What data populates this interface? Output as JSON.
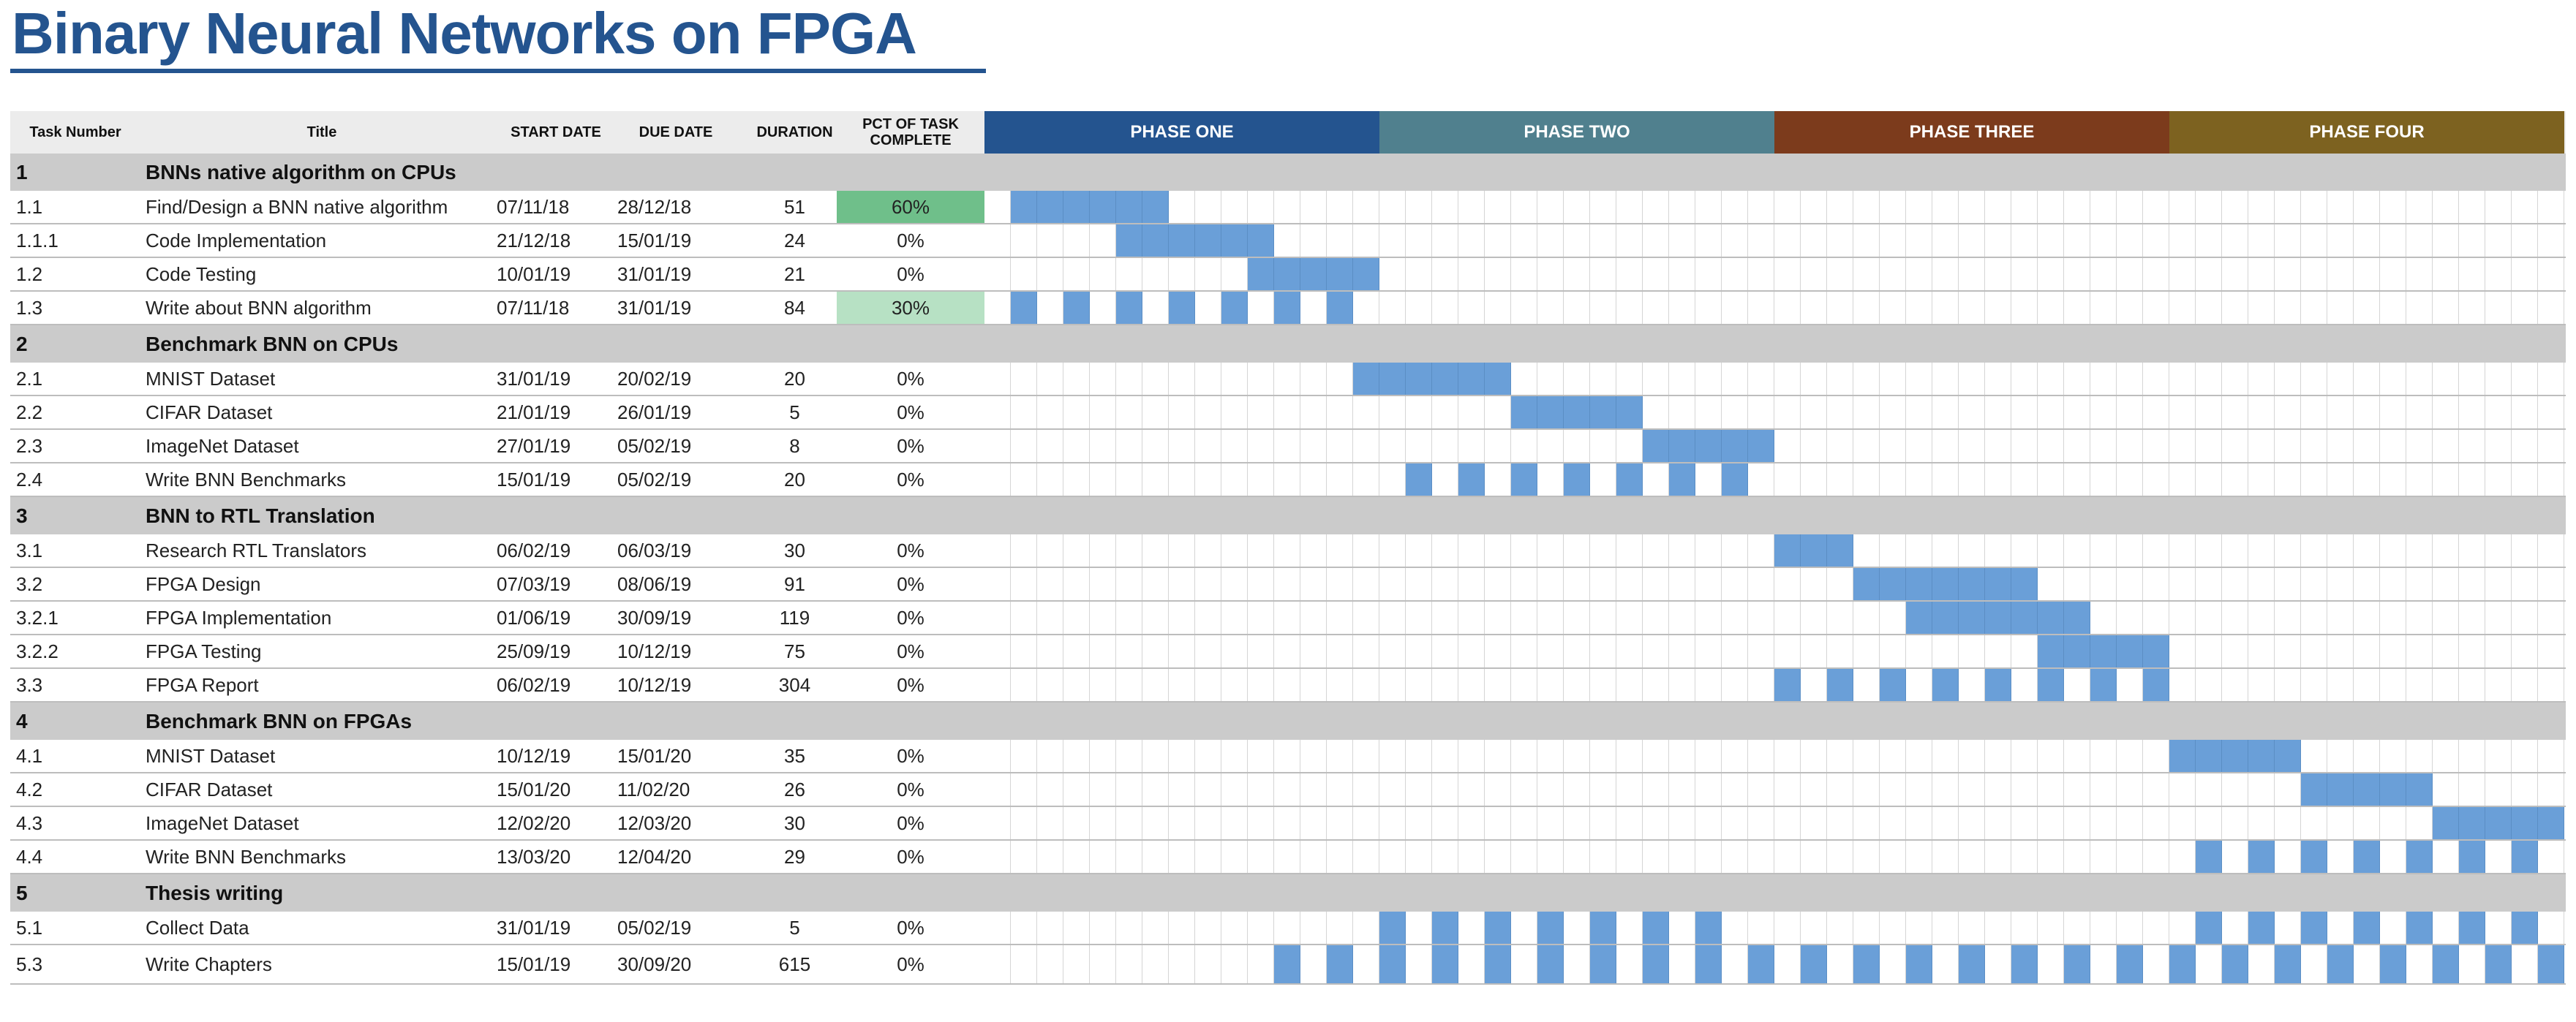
{
  "title": "Binary Neural Networks on FPGA",
  "colors": {
    "title": "#24548f",
    "header_bg": "#ececec",
    "section_bg": "#cbcbcb",
    "bar": "#6a9fd8",
    "pct_high": "#6fbf8a",
    "pct_mid": "#b7e1c4"
  },
  "headers": {
    "task_number": "Task Number",
    "title": "Title",
    "start": "START DATE",
    "due": "DUE DATE",
    "duration": "DURATION",
    "pct": "PCT OF TASK COMPLETE"
  },
  "phases": [
    {
      "label": "PHASE ONE",
      "color": "#24548f"
    },
    {
      "label": "PHASE TWO",
      "color": "#50808e"
    },
    {
      "label": "PHASE THREE",
      "color": "#7c3b1c"
    },
    {
      "label": "PHASE FOUR",
      "color": "#7d6220"
    }
  ],
  "rows": [
    {
      "type": "section",
      "num": "1",
      "title": "BNNs native algorithm on CPUs"
    },
    {
      "type": "task",
      "num": "1.1",
      "title": "Find/Design a BNN native algorithm",
      "start": "07/11/18",
      "due": "28/12/18",
      "duration": "51",
      "pct": "60%",
      "pct_level": "high",
      "bars": [
        [
          1,
          6
        ]
      ]
    },
    {
      "type": "task",
      "num": "1.1.1",
      "title": "Code Implementation",
      "start": "21/12/18",
      "due": "15/01/19",
      "duration": "24",
      "pct": "0%",
      "bars": [
        [
          5,
          10
        ]
      ]
    },
    {
      "type": "task",
      "num": "1.2",
      "title": "Code Testing",
      "start": "10/01/19",
      "due": "31/01/19",
      "duration": "21",
      "pct": "0%",
      "bars": [
        [
          10,
          14
        ]
      ]
    },
    {
      "type": "task",
      "num": "1.3",
      "title": "Write about BNN algorithm",
      "start": "07/11/18",
      "due": "31/01/19",
      "duration": "84",
      "pct": "30%",
      "pct_level": "mid",
      "bars": [
        [
          1,
          1
        ],
        [
          3,
          3
        ],
        [
          5,
          5
        ],
        [
          7,
          7
        ],
        [
          9,
          9
        ],
        [
          11,
          11
        ],
        [
          13,
          13
        ]
      ]
    },
    {
      "type": "section",
      "num": "2",
      "title": "Benchmark BNN on CPUs"
    },
    {
      "type": "task",
      "num": "2.1",
      "title": "MNIST Dataset",
      "start": "31/01/19",
      "due": "20/02/19",
      "duration": "20",
      "pct": "0%",
      "bars": [
        [
          14,
          19
        ]
      ]
    },
    {
      "type": "task",
      "num": "2.2",
      "title": "CIFAR Dataset",
      "start": "21/01/19",
      "due": "26/01/19",
      "duration": "5",
      "pct": "0%",
      "bars": [
        [
          20,
          24
        ]
      ]
    },
    {
      "type": "task",
      "num": "2.3",
      "title": "ImageNet Dataset",
      "start": "27/01/19",
      "due": "05/02/19",
      "duration": "8",
      "pct": "0%",
      "bars": [
        [
          25,
          29
        ]
      ]
    },
    {
      "type": "task",
      "num": "2.4",
      "title": "Write BNN Benchmarks",
      "start": "15/01/19",
      "due": "05/02/19",
      "duration": "20",
      "pct": "0%",
      "bars": [
        [
          16,
          16
        ],
        [
          18,
          18
        ],
        [
          20,
          20
        ],
        [
          22,
          22
        ],
        [
          24,
          24
        ],
        [
          26,
          26
        ],
        [
          28,
          28
        ]
      ]
    },
    {
      "type": "section",
      "num": "3",
      "title": "BNN to RTL Translation"
    },
    {
      "type": "task",
      "num": "3.1",
      "title": "Research RTL Translators",
      "start": "06/02/19",
      "due": "06/03/19",
      "duration": "30",
      "pct": "0%",
      "bars": [
        [
          30,
          32
        ]
      ]
    },
    {
      "type": "task",
      "num": "3.2",
      "title": "FPGA Design",
      "start": "07/03/19",
      "due": "08/06/19",
      "duration": "91",
      "pct": "0%",
      "bars": [
        [
          33,
          39
        ]
      ]
    },
    {
      "type": "task",
      "num": "3.2.1",
      "title": "FPGA Implementation",
      "start": "01/06/19",
      "due": "30/09/19",
      "duration": "119",
      "pct": "0%",
      "bars": [
        [
          35,
          41
        ]
      ]
    },
    {
      "type": "task",
      "num": "3.2.2",
      "title": "FPGA Testing",
      "start": "25/09/19",
      "due": "10/12/19",
      "duration": "75",
      "pct": "0%",
      "bars": [
        [
          40,
          44
        ]
      ]
    },
    {
      "type": "task",
      "num": "3.3",
      "title": "FPGA Report",
      "start": "06/02/19",
      "due": "10/12/19",
      "duration": "304",
      "pct": "0%",
      "bars": [
        [
          30,
          30
        ],
        [
          32,
          32
        ],
        [
          34,
          34
        ],
        [
          36,
          36
        ],
        [
          38,
          38
        ],
        [
          40,
          40
        ],
        [
          42,
          42
        ],
        [
          44,
          44
        ]
      ]
    },
    {
      "type": "section",
      "num": "4",
      "title": "Benchmark BNN on FPGAs"
    },
    {
      "type": "task",
      "num": "4.1",
      "title": "MNIST Dataset",
      "start": "10/12/19",
      "due": "15/01/20",
      "duration": "35",
      "pct": "0%",
      "bars": [
        [
          45,
          49
        ]
      ]
    },
    {
      "type": "task",
      "num": "4.2",
      "title": "CIFAR Dataset",
      "start": "15/01/20",
      "due": "11/02/20",
      "duration": "26",
      "pct": "0%",
      "bars": [
        [
          50,
          54
        ]
      ]
    },
    {
      "type": "task",
      "num": "4.3",
      "title": "ImageNet Dataset",
      "start": "12/02/20",
      "due": "12/03/20",
      "duration": "30",
      "pct": "0%",
      "bars": [
        [
          55,
          59
        ]
      ]
    },
    {
      "type": "task",
      "num": "4.4",
      "title": "Write BNN Benchmarks",
      "start": "13/03/20",
      "due": "12/04/20",
      "duration": "29",
      "pct": "0%",
      "bars": [
        [
          46,
          46
        ],
        [
          48,
          48
        ],
        [
          50,
          50
        ],
        [
          52,
          52
        ],
        [
          54,
          54
        ],
        [
          56,
          56
        ],
        [
          58,
          58
        ]
      ]
    },
    {
      "type": "section",
      "num": "5",
      "title": "Thesis writing"
    },
    {
      "type": "task",
      "num": "5.1",
      "title": "Collect Data",
      "start": "31/01/19",
      "due": "05/02/19",
      "duration": "5",
      "pct": "0%",
      "bars": [
        [
          15,
          15
        ],
        [
          17,
          17
        ],
        [
          19,
          19
        ],
        [
          21,
          21
        ],
        [
          23,
          23
        ],
        [
          25,
          25
        ],
        [
          27,
          27
        ],
        [
          46,
          46
        ],
        [
          48,
          48
        ],
        [
          50,
          50
        ],
        [
          52,
          52
        ],
        [
          54,
          54
        ],
        [
          56,
          56
        ],
        [
          58,
          58
        ]
      ]
    },
    {
      "type": "task",
      "num": "5.3",
      "title": "Write Chapters",
      "start": "15/01/19",
      "due": "30/09/20",
      "duration": "615",
      "pct": "0%",
      "bars": [
        [
          11,
          11
        ],
        [
          13,
          13
        ],
        [
          15,
          15
        ],
        [
          17,
          17
        ],
        [
          19,
          19
        ],
        [
          21,
          21
        ],
        [
          23,
          23
        ],
        [
          25,
          25
        ],
        [
          27,
          27
        ],
        [
          29,
          29
        ],
        [
          31,
          31
        ],
        [
          33,
          33
        ],
        [
          35,
          35
        ],
        [
          37,
          37
        ],
        [
          39,
          39
        ],
        [
          41,
          41
        ],
        [
          43,
          43
        ],
        [
          45,
          45
        ],
        [
          47,
          47
        ],
        [
          49,
          49
        ],
        [
          51,
          51
        ],
        [
          53,
          53
        ],
        [
          55,
          55
        ],
        [
          57,
          57
        ],
        [
          59,
          59
        ]
      ]
    }
  ]
}
